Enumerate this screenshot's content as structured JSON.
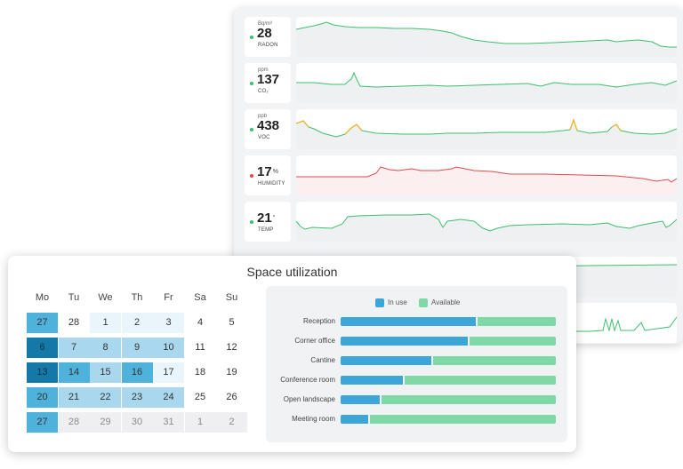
{
  "colors": {
    "line_green": "#3dbf6e",
    "line_red": "#e2494f",
    "line_yellow": "#f1b21d",
    "dot_green": "#3dbf6e",
    "dot_red": "#e2494f",
    "in_use": "#3ca6d8",
    "available": "#7fd9a6",
    "cal_dark": "#1479a6",
    "cal_mid": "#4fb2da",
    "cal_light": "#a9d8ee",
    "cal_faint": "#e9f5fb",
    "cal_grey": "#efeff1"
  },
  "sensors": [
    {
      "unit_top": "Bq/m³",
      "value": "28",
      "unit_side": "",
      "name": "RADON",
      "status": "green",
      "icon": "status-dot-icon"
    },
    {
      "unit_top": "ppm",
      "value": "137",
      "unit_side": "",
      "name": "CO₂",
      "status": "green",
      "icon": "status-dot-icon"
    },
    {
      "unit_top": "ppb",
      "value": "438",
      "unit_side": "",
      "name": "VOC",
      "status": "green",
      "icon": "status-dot-icon"
    },
    {
      "unit_top": "",
      "value": "17",
      "unit_side": "%",
      "name": "HUMIDITY",
      "status": "red",
      "icon": "status-dot-icon"
    },
    {
      "unit_top": "",
      "value": "21",
      "unit_side": "°",
      "name": "TEMP",
      "status": "green",
      "icon": "status-dot-icon"
    }
  ],
  "space_utilization": {
    "title": "Space utilization",
    "calendar": {
      "weekdays": [
        "Mo",
        "Tu",
        "We",
        "Th",
        "Fr",
        "Sa",
        "Su"
      ],
      "weeks": [
        [
          {
            "d": "27",
            "s": "mid"
          },
          {
            "d": "28",
            "s": "none"
          },
          {
            "d": "1",
            "s": "faint"
          },
          {
            "d": "2",
            "s": "faint"
          },
          {
            "d": "3",
            "s": "faint"
          },
          {
            "d": "4",
            "s": "none"
          },
          {
            "d": "5",
            "s": "none"
          }
        ],
        [
          {
            "d": "6",
            "s": "dark"
          },
          {
            "d": "7",
            "s": "light"
          },
          {
            "d": "8",
            "s": "light"
          },
          {
            "d": "9",
            "s": "light"
          },
          {
            "d": "10",
            "s": "light"
          },
          {
            "d": "11",
            "s": "none"
          },
          {
            "d": "12",
            "s": "none"
          }
        ],
        [
          {
            "d": "13",
            "s": "dark"
          },
          {
            "d": "14",
            "s": "mid"
          },
          {
            "d": "15",
            "s": "light"
          },
          {
            "d": "16",
            "s": "mid"
          },
          {
            "d": "17",
            "s": "faint"
          },
          {
            "d": "18",
            "s": "none"
          },
          {
            "d": "19",
            "s": "none"
          }
        ],
        [
          {
            "d": "20",
            "s": "mid"
          },
          {
            "d": "21",
            "s": "light"
          },
          {
            "d": "22",
            "s": "light"
          },
          {
            "d": "23",
            "s": "light"
          },
          {
            "d": "24",
            "s": "light"
          },
          {
            "d": "25",
            "s": "none"
          },
          {
            "d": "26",
            "s": "none"
          }
        ],
        [
          {
            "d": "27",
            "s": "mid"
          },
          {
            "d": "28",
            "s": "grey"
          },
          {
            "d": "29",
            "s": "grey"
          },
          {
            "d": "30",
            "s": "grey"
          },
          {
            "d": "31",
            "s": "grey"
          },
          {
            "d": "1",
            "s": "grey"
          },
          {
            "d": "2",
            "s": "grey"
          }
        ]
      ]
    },
    "legend": {
      "in_use": "In use",
      "available": "Available"
    },
    "chart_data": {
      "type": "bar",
      "stacked": true,
      "orientation": "horizontal",
      "categories": [
        "Reception",
        "Corner office",
        "Cantine",
        "Conference room",
        "Open landscape",
        "Meeting room"
      ],
      "series": [
        {
          "name": "In use",
          "values": [
            63,
            59,
            42,
            29,
            18,
            13
          ]
        },
        {
          "name": "Available",
          "values": [
            37,
            41,
            58,
            71,
            82,
            87
          ]
        }
      ],
      "xlim": [
        0,
        100
      ],
      "legend": "top"
    }
  }
}
